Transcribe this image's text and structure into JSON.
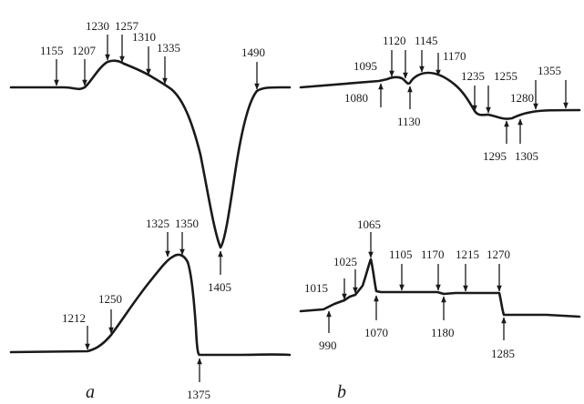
{
  "panels": [
    {
      "label": "a"
    },
    {
      "label": "b"
    }
  ],
  "curves": [
    {
      "id": "a-upper",
      "annotations": [
        {
          "text": "1155",
          "dir": "down"
        },
        {
          "text": "1207",
          "dir": "down"
        },
        {
          "text": "1230",
          "dir": "down"
        },
        {
          "text": "1257",
          "dir": "down"
        },
        {
          "text": "1310",
          "dir": "down"
        },
        {
          "text": "1335",
          "dir": "down"
        },
        {
          "text": "1405",
          "dir": "up"
        },
        {
          "text": "1490",
          "dir": "down"
        }
      ]
    },
    {
      "id": "a-lower",
      "annotations": [
        {
          "text": "1212",
          "dir": "down"
        },
        {
          "text": "1250",
          "dir": "down"
        },
        {
          "text": "1325",
          "dir": "down"
        },
        {
          "text": "1350",
          "dir": "down"
        },
        {
          "text": "1375",
          "dir": "up"
        }
      ]
    },
    {
      "id": "b-upper",
      "annotations": [
        {
          "text": "1080",
          "dir": "up"
        },
        {
          "text": "1095",
          "dir": "down"
        },
        {
          "text": "1120",
          "dir": "down"
        },
        {
          "text": "1130",
          "dir": "up"
        },
        {
          "text": "1145",
          "dir": "down"
        },
        {
          "text": "1170",
          "dir": "down"
        },
        {
          "text": "1235",
          "dir": "down"
        },
        {
          "text": "1255",
          "dir": "down"
        },
        {
          "text": "1280",
          "dir": "down"
        },
        {
          "text": "1295",
          "dir": "up"
        },
        {
          "text": "1305",
          "dir": "up"
        },
        {
          "text": "1355",
          "dir": "down"
        }
      ]
    },
    {
      "id": "b-lower",
      "annotations": [
        {
          "text": "990",
          "dir": "up"
        },
        {
          "text": "1015",
          "dir": "down"
        },
        {
          "text": "1025",
          "dir": "down"
        },
        {
          "text": "1065",
          "dir": "down"
        },
        {
          "text": "1070",
          "dir": "up"
        },
        {
          "text": "1105",
          "dir": "down"
        },
        {
          "text": "1170",
          "dir": "down"
        },
        {
          "text": "1180",
          "dir": "up"
        },
        {
          "text": "1215",
          "dir": "down"
        },
        {
          "text": "1270",
          "dir": "down"
        },
        {
          "text": "1285",
          "dir": "up"
        }
      ]
    }
  ]
}
